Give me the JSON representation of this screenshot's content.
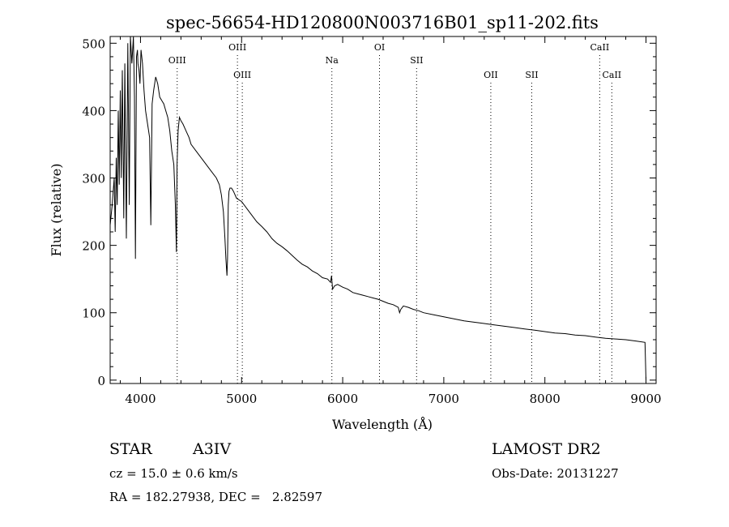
{
  "chart_data": {
    "type": "line",
    "title": "spec-56654-HD120800N003716B01_sp11-202.fits",
    "xlabel": "Wavelength (Å)",
    "ylabel": "Flux (relative)",
    "xlim": [
      3700,
      9100
    ],
    "ylim": [
      -5,
      510
    ],
    "x_ticks": [
      4000,
      5000,
      6000,
      7000,
      8000,
      9000
    ],
    "y_ticks": [
      0,
      100,
      200,
      300,
      400,
      500
    ],
    "grid": false,
    "line_color": "#000000",
    "lines": [
      {
        "label": "OIII",
        "wavelength": 4363,
        "label_row": 1
      },
      {
        "label": "OIII",
        "wavelength": 4959,
        "label_row": 0
      },
      {
        "label": "OIII",
        "wavelength": 5007,
        "label_row": 2
      },
      {
        "label": "Na",
        "wavelength": 5893,
        "label_row": 1
      },
      {
        "label": "OI",
        "wavelength": 6364,
        "label_row": 0
      },
      {
        "label": "SII",
        "wavelength": 6731,
        "label_row": 1
      },
      {
        "label": "OII",
        "wavelength": 7465,
        "label_row": 2
      },
      {
        "label": "SII",
        "wavelength": 7870,
        "label_row": 2
      },
      {
        "label": "CaII",
        "wavelength": 8542,
        "label_row": 0
      },
      {
        "label": "CaII",
        "wavelength": 8662,
        "label_row": 2
      }
    ],
    "series": [
      {
        "x": [
          3700,
          3720,
          3740,
          3750,
          3760,
          3770,
          3780,
          3790,
          3800,
          3810,
          3820,
          3835,
          3845,
          3860,
          3875,
          3889,
          3900,
          3915,
          3930,
          3940,
          3950,
          3960,
          3970,
          3975,
          3985,
          3995,
          4005,
          4020,
          4035,
          4050,
          4070,
          4090,
          4102,
          4115,
          4130,
          4150,
          4170,
          4190,
          4210,
          4230,
          4250,
          4270,
          4290,
          4310,
          4330,
          4345,
          4355,
          4362,
          4372,
          4385,
          4400,
          4420,
          4450,
          4480,
          4500,
          4550,
          4600,
          4650,
          4700,
          4750,
          4780,
          4800,
          4820,
          4835,
          4845,
          4855,
          4861,
          4868,
          4875,
          4885,
          4900,
          4920,
          4950,
          5000,
          5050,
          5100,
          5150,
          5200,
          5250,
          5300,
          5350,
          5400,
          5450,
          5500,
          5550,
          5600,
          5650,
          5700,
          5750,
          5800,
          5850,
          5880,
          5890,
          5900,
          5920,
          5950,
          6000,
          6050,
          6100,
          6150,
          6200,
          6250,
          6300,
          6350,
          6400,
          6450,
          6500,
          6550,
          6563,
          6575,
          6600,
          6650,
          6700,
          6750,
          6800,
          6900,
          7000,
          7100,
          7200,
          7300,
          7400,
          7500,
          7600,
          7700,
          7800,
          7900,
          8000,
          8100,
          8200,
          8300,
          8400,
          8500,
          8600,
          8700,
          8800,
          8900,
          8990,
          9000
        ],
        "y": [
          230,
          260,
          300,
          220,
          330,
          260,
          400,
          290,
          430,
          300,
          460,
          240,
          470,
          210,
          500,
          260,
          520,
          470,
          510,
          420,
          180,
          480,
          490,
          470,
          460,
          440,
          490,
          470,
          430,
          400,
          380,
          360,
          230,
          410,
          430,
          450,
          440,
          420,
          415,
          410,
          400,
          390,
          370,
          340,
          320,
          260,
          190,
          320,
          370,
          390,
          385,
          380,
          370,
          360,
          350,
          340,
          330,
          320,
          310,
          300,
          290,
          275,
          250,
          210,
          180,
          155,
          180,
          260,
          280,
          285,
          285,
          280,
          270,
          265,
          255,
          245,
          235,
          228,
          220,
          210,
          203,
          198,
          192,
          185,
          178,
          172,
          168,
          162,
          158,
          152,
          150,
          145,
          155,
          135,
          140,
          142,
          138,
          135,
          130,
          128,
          126,
          124,
          122,
          120,
          117,
          114,
          112,
          108,
          100,
          105,
          110,
          108,
          105,
          103,
          100,
          97,
          94,
          91,
          88,
          86,
          84,
          82,
          80,
          78,
          76,
          74,
          72,
          70,
          69,
          67,
          66,
          64,
          62,
          61,
          60,
          58,
          56,
          0
        ]
      }
    ]
  },
  "info": {
    "object_type": "STAR",
    "spectral_class": "A3IV",
    "survey": "LAMOST DR2",
    "cz": "cz = 15.0 ± 0.6 km/s",
    "obs_date": "Obs-Date: 20131227",
    "coords": "RA = 182.27938, DEC =   2.82597"
  }
}
